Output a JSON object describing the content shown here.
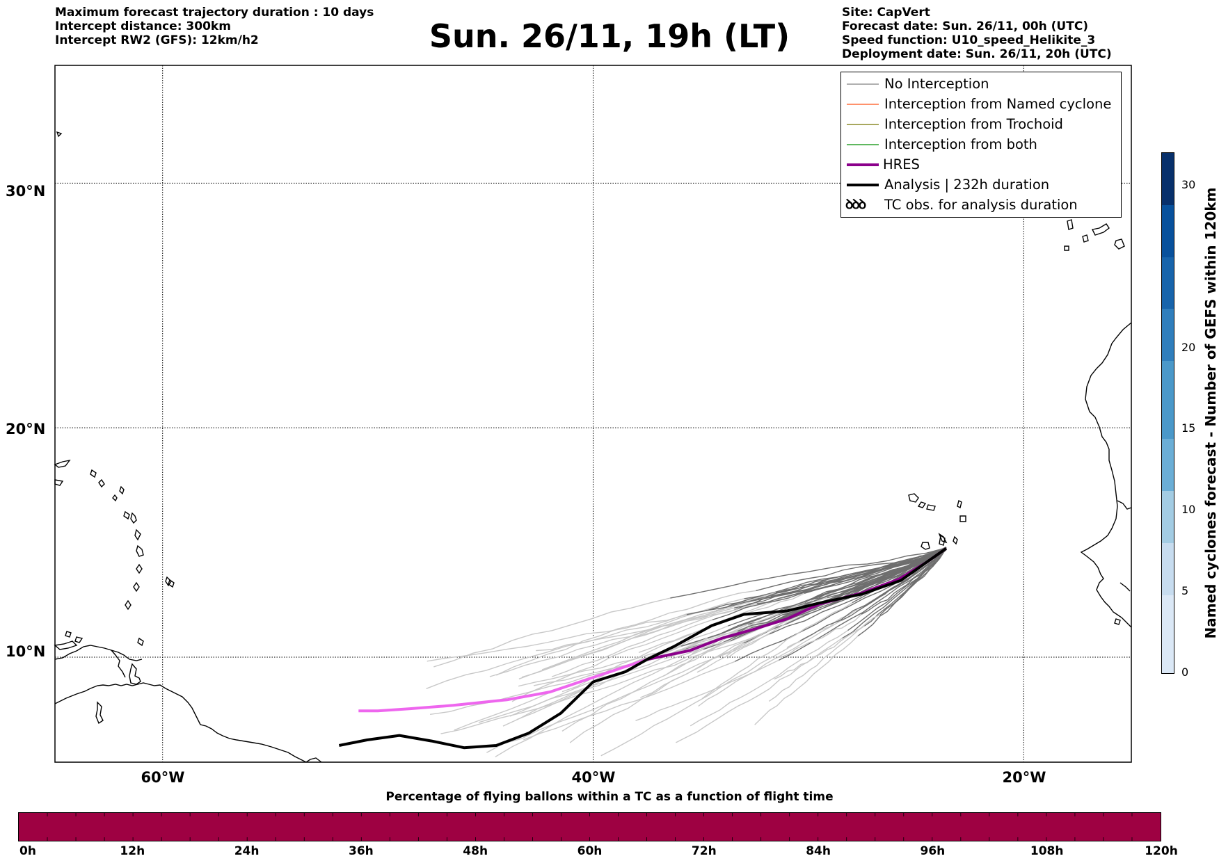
{
  "header": {
    "left_lines": [
      "Maximum forecast trajectory duration : 10 days",
      "Intercept distance: 300km",
      "Intercept RW2 (GFS):  12km/h2"
    ],
    "title": "Sun. 26/11, 19h (LT)",
    "right_lines": [
      "Site: CapVert",
      "Forecast date: Sun. 26/11, 00h (UTC)",
      "Speed function: U10_speed_Helikite_3",
      "Deployment date: Sun. 26/11, 20h (UTC)"
    ]
  },
  "map": {
    "lat_labels": [
      "30°N",
      "20°N",
      "10°N"
    ],
    "lon_labels": [
      "60°W",
      "40°W",
      "20°W"
    ],
    "lon_range": [
      -65,
      -15
    ],
    "lat_range": [
      5.3,
      34.5
    ],
    "gridlines": {
      "lons": [
        -60,
        -40,
        -20
      ],
      "lats": [
        10,
        20,
        30
      ]
    },
    "launch_site": {
      "lon": -23.6,
      "lat": 14.8
    },
    "analysis_track": [
      [
        -23.6,
        14.8
      ],
      [
        -24.5,
        14.2
      ],
      [
        -25.7,
        13.4
      ],
      [
        -27.5,
        12.8
      ],
      [
        -29.5,
        12.4
      ],
      [
        -31,
        12.05
      ],
      [
        -33,
        11.9
      ],
      [
        -34.5,
        11.4
      ],
      [
        -36.2,
        10.5
      ],
      [
        -37.5,
        9.9
      ],
      [
        -38.5,
        9.35
      ],
      [
        -40,
        8.9
      ],
      [
        -41.5,
        7.5
      ],
      [
        -43,
        6.6
      ],
      [
        -44.5,
        6.05
      ],
      [
        -46,
        5.95
      ],
      [
        -47.5,
        6.25
      ],
      [
        -49,
        6.5
      ],
      [
        -50.5,
        6.3
      ],
      [
        -51.8,
        6.05
      ]
    ],
    "hres_track": [
      [
        -23.6,
        14.8
      ],
      [
        -24.5,
        14.2
      ],
      [
        -25.8,
        13.45
      ],
      [
        -27.5,
        12.85
      ],
      [
        -29.5,
        12.35
      ],
      [
        -31,
        11.7
      ],
      [
        -32.5,
        11.25
      ],
      [
        -34,
        10.85
      ],
      [
        -35.5,
        10.3
      ],
      [
        -37.5,
        9.9
      ],
      [
        -40,
        9.1
      ],
      [
        -42,
        8.45
      ],
      [
        -44,
        8.1
      ],
      [
        -46.5,
        7.85
      ],
      [
        -48.5,
        7.7
      ],
      [
        -50,
        7.6
      ],
      [
        -50.9,
        7.6
      ]
    ],
    "hres_color": "#8b008b",
    "hres_faded_color": "#ee66ee",
    "ensemble_colors": {
      "dark": "#6e6e6e",
      "light": "#c8c8c8"
    }
  },
  "legend": {
    "items": [
      {
        "label": "No Interception",
        "color": "#808080",
        "width": 1
      },
      {
        "label": "Interception from Named cyclone",
        "color": "#ff6f3c",
        "width": 1.5
      },
      {
        "label": "Interception from Trochoid",
        "color": "#8b8b2a",
        "width": 1.5
      },
      {
        "label": "Interception from both",
        "color": "#2ca02c",
        "width": 1.5
      },
      {
        "label": "HRES",
        "color": "#8b008b",
        "width": 4
      },
      {
        "label": "Analysis | 232h duration",
        "color": "#000000",
        "width": 4
      }
    ],
    "tc_obs_label": "TC obs. for analysis duration"
  },
  "colorbar_right": {
    "label": "Named cyclones forecast - Number of GEFS within 120km",
    "ticks": [
      0,
      5,
      10,
      15,
      20,
      30
    ],
    "max": 32,
    "colors": [
      "#dbe8f6",
      "#c7dcef",
      "#a3cce3",
      "#6baed6",
      "#4a98c9",
      "#2f7ebc",
      "#1764ab",
      "#08519c",
      "#08306b"
    ]
  },
  "colorbar_bottom": {
    "title": "Percentage of flying ballons within a TC as a function of flight time",
    "hour_labels": [
      "0h",
      "12h",
      "24h",
      "36h",
      "48h",
      "60h",
      "72h",
      "84h",
      "96h",
      "108h",
      "120h"
    ],
    "fill_color": "#9e0142"
  }
}
